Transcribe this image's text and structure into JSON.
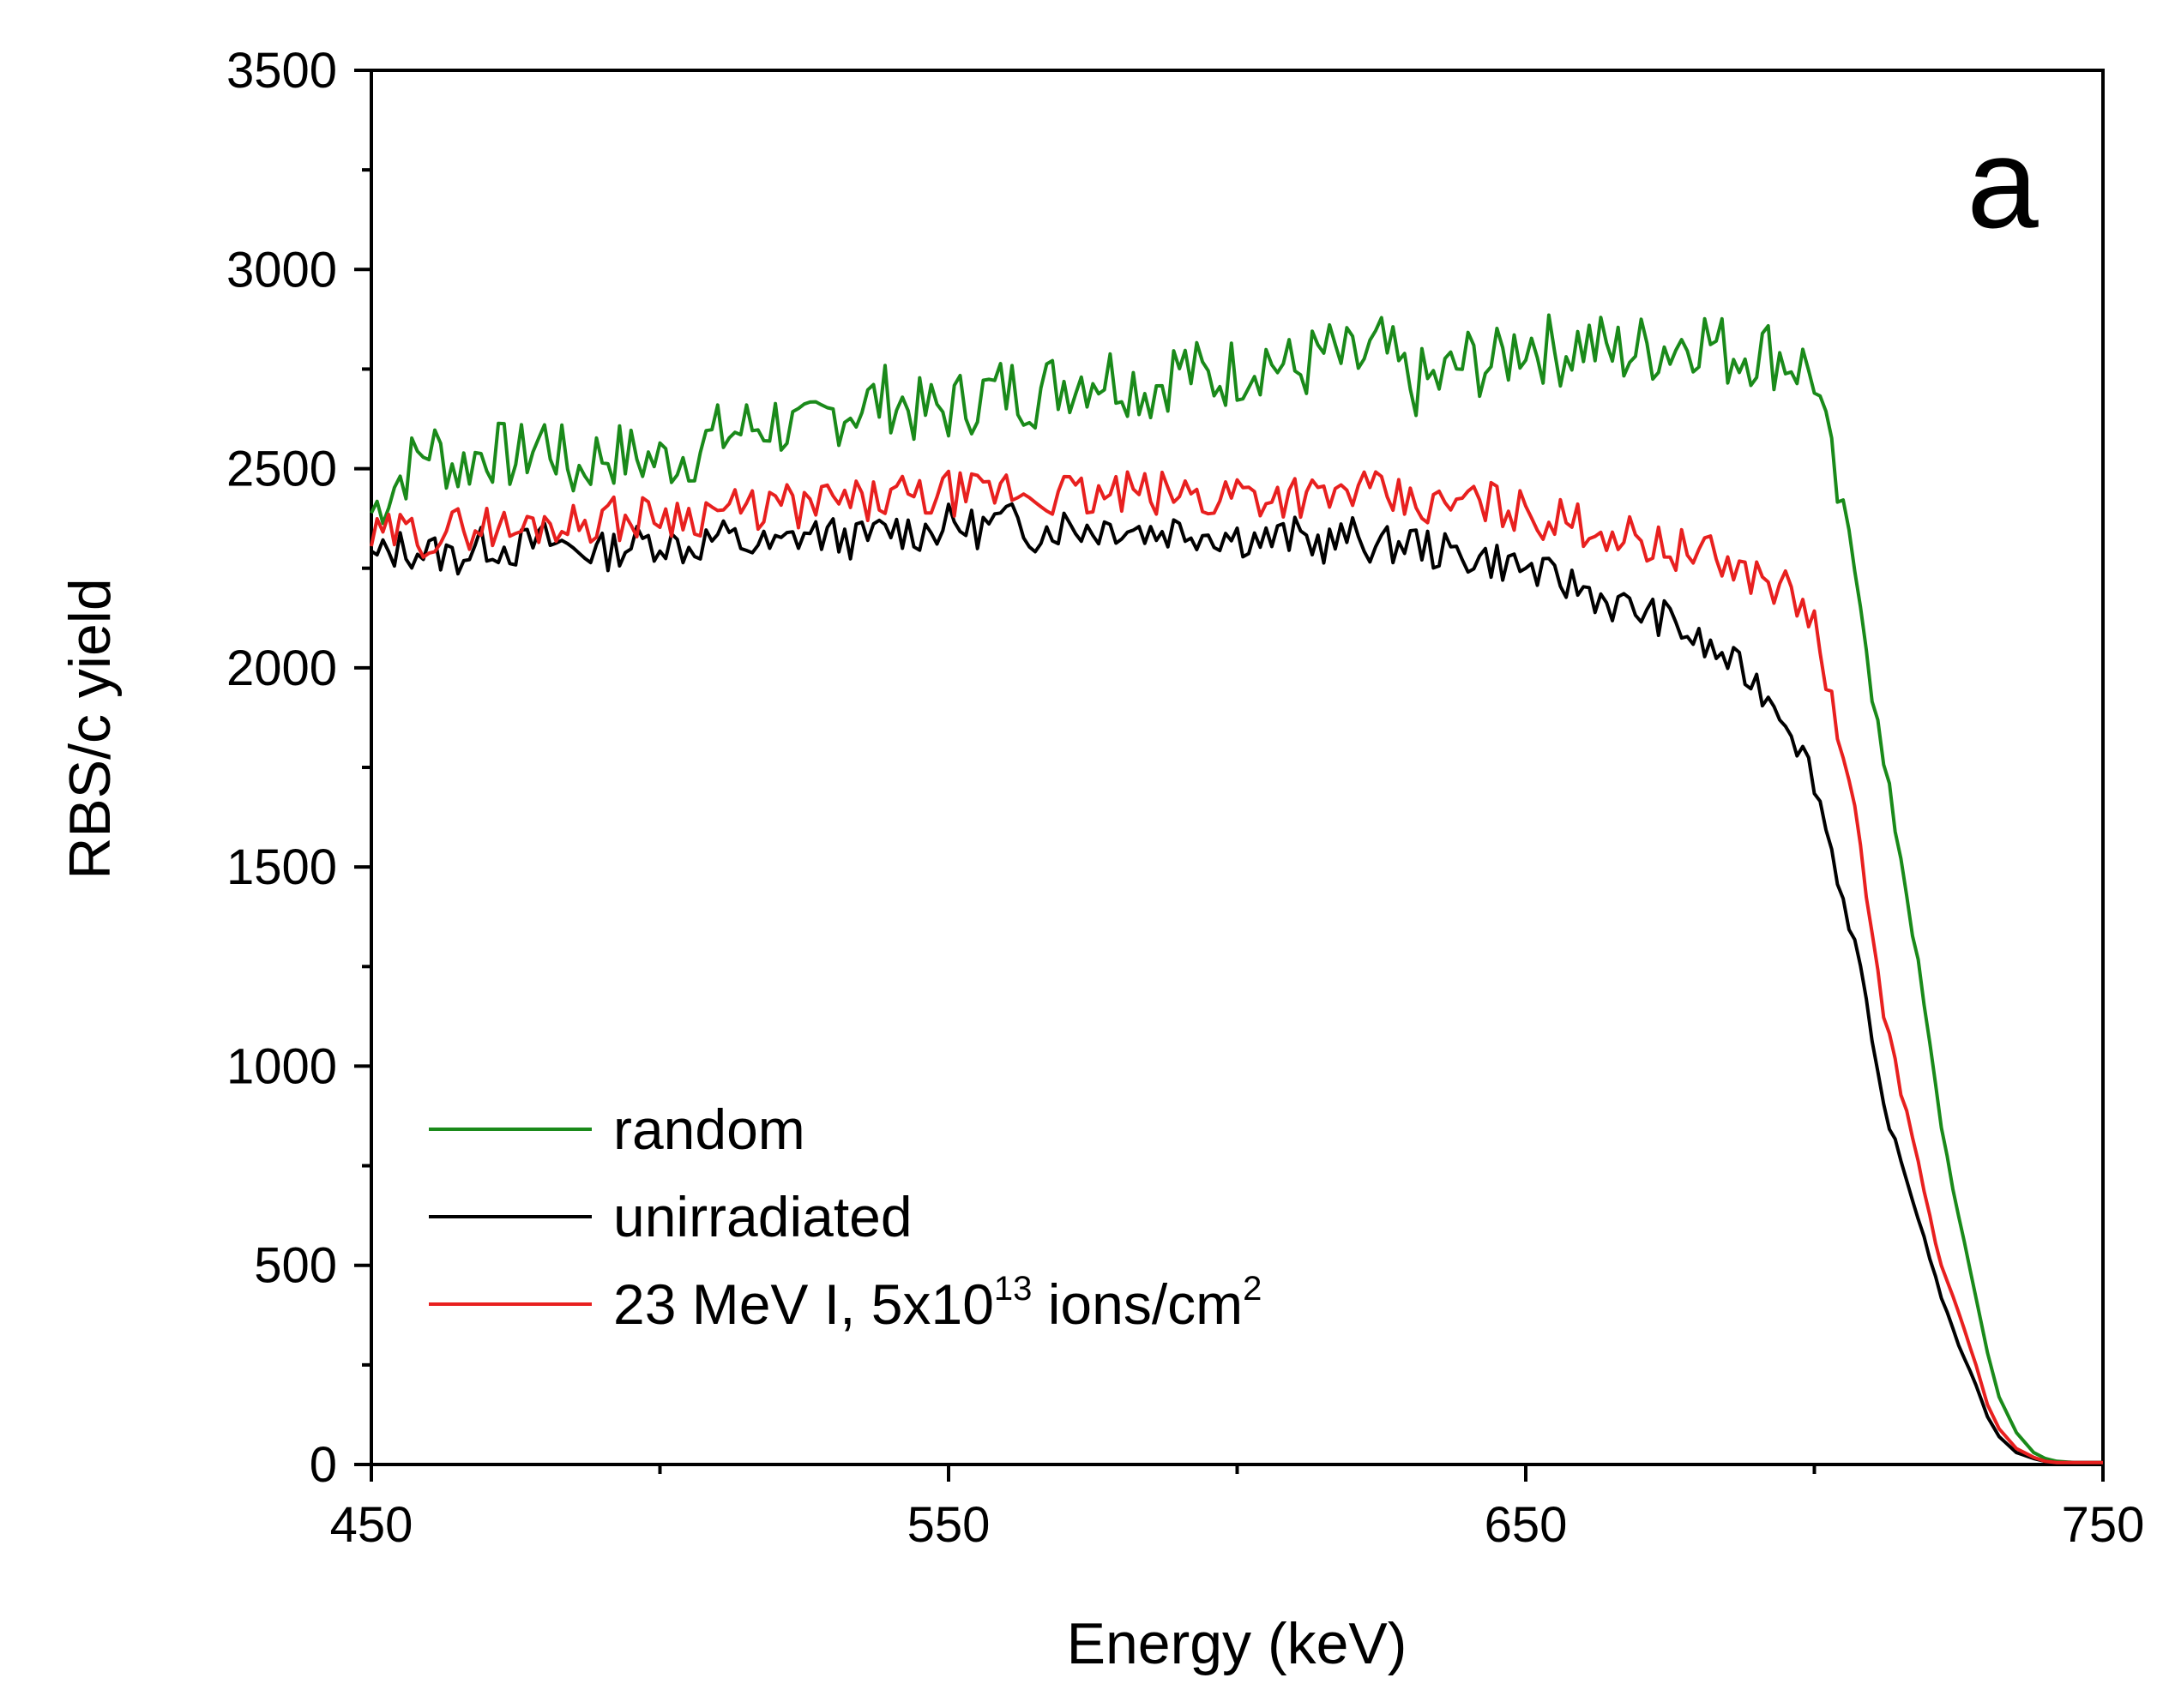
{
  "chart_data": {
    "type": "line",
    "title": "",
    "panel_label": "a",
    "xlabel": "Energy (keV)",
    "ylabel": "RBS/c yield",
    "xlim": [
      450,
      750
    ],
    "ylim": [
      0,
      3500
    ],
    "x_ticks": [
      450,
      550,
      650,
      750
    ],
    "x_tick_labels": [
      "450",
      "550",
      "650",
      "750"
    ],
    "y_ticks": [
      0,
      500,
      1000,
      1500,
      2000,
      2500,
      3000,
      3500
    ],
    "y_tick_labels": [
      "0",
      "500",
      "1000",
      "1500",
      "2000",
      "2500",
      "3000",
      "3500"
    ],
    "x_minor_step": 50,
    "y_minor_step": 250,
    "grid": false,
    "legend_position": "bottom-left",
    "series": [
      {
        "name": "random",
        "color": "#1a8a1a",
        "x": [
          450,
          455,
          460,
          465,
          470,
          475,
          480,
          485,
          490,
          495,
          500,
          505,
          510,
          515,
          520,
          525,
          530,
          535,
          540,
          545,
          550,
          555,
          560,
          565,
          570,
          575,
          580,
          585,
          590,
          595,
          600,
          605,
          610,
          615,
          620,
          625,
          630,
          635,
          640,
          645,
          650,
          655,
          660,
          665,
          670,
          675,
          680,
          685,
          690,
          695,
          700,
          702,
          705,
          708,
          710,
          712,
          715,
          718,
          720,
          722,
          725,
          728,
          730,
          732,
          735,
          738,
          740,
          742,
          745,
          750
        ],
        "y": [
          2390,
          2480,
          2560,
          2500,
          2550,
          2520,
          2580,
          2490,
          2540,
          2530,
          2520,
          2540,
          2580,
          2600,
          2620,
          2580,
          2640,
          2660,
          2680,
          2640,
          2650,
          2680,
          2700,
          2690,
          2720,
          2740,
          2730,
          2700,
          2760,
          2720,
          2750,
          2780,
          2740,
          2790,
          2760,
          2800,
          2710,
          2720,
          2770,
          2760,
          2830,
          2790,
          2820,
          2790,
          2800,
          2810,
          2840,
          2790,
          2800,
          2780,
          2740,
          2580,
          2360,
          2200,
          1950,
          1750,
          1530,
          1250,
          1050,
          850,
          620,
          420,
          280,
          170,
          80,
          30,
          15,
          8,
          5,
          5
        ]
      },
      {
        "name": "unirradiated",
        "color": "#000000",
        "x": [
          450,
          455,
          460,
          465,
          470,
          475,
          480,
          485,
          490,
          495,
          500,
          505,
          510,
          515,
          520,
          525,
          530,
          535,
          540,
          545,
          550,
          555,
          560,
          565,
          570,
          575,
          580,
          585,
          590,
          595,
          600,
          605,
          610,
          615,
          620,
          625,
          630,
          635,
          640,
          645,
          650,
          655,
          660,
          665,
          670,
          675,
          680,
          685,
          690,
          695,
          700,
          702,
          705,
          708,
          710,
          712,
          715,
          718,
          720,
          722,
          725,
          728,
          730,
          732,
          735,
          738,
          740,
          742,
          745,
          750
        ],
        "y": [
          2270,
          2300,
          2290,
          2280,
          2310,
          2300,
          2320,
          2300,
          2290,
          2310,
          2320,
          2300,
          2330,
          2310,
          2300,
          2340,
          2330,
          2320,
          2350,
          2340,
          2360,
          2350,
          2370,
          2340,
          2360,
          2350,
          2360,
          2340,
          2350,
          2340,
          2330,
          2320,
          2330,
          2310,
          2330,
          2300,
          2320,
          2290,
          2280,
          2270,
          2250,
          2220,
          2200,
          2160,
          2140,
          2120,
          2060,
          2020,
          1960,
          1880,
          1720,
          1600,
          1420,
          1250,
          1050,
          900,
          760,
          620,
          520,
          420,
          300,
          200,
          120,
          70,
          30,
          15,
          8,
          5,
          5,
          5
        ]
      },
      {
        "name": "23 MeV I, 5x10¹³ ions/cm²",
        "color": "#e8201f",
        "x": [
          450,
          455,
          460,
          465,
          470,
          475,
          480,
          485,
          490,
          495,
          500,
          505,
          510,
          515,
          520,
          525,
          530,
          535,
          540,
          545,
          550,
          555,
          560,
          565,
          570,
          575,
          580,
          585,
          590,
          595,
          600,
          605,
          610,
          615,
          620,
          625,
          630,
          635,
          640,
          645,
          650,
          655,
          660,
          665,
          670,
          675,
          680,
          685,
          690,
          695,
          700,
          702,
          705,
          708,
          710,
          712,
          715,
          718,
          720,
          722,
          725,
          728,
          730,
          732,
          735,
          738,
          740,
          742,
          745,
          750
        ],
        "y": [
          2320,
          2340,
          2330,
          2350,
          2360,
          2340,
          2370,
          2360,
          2380,
          2370,
          2390,
          2380,
          2400,
          2390,
          2410,
          2400,
          2420,
          2410,
          2430,
          2420,
          2440,
          2430,
          2450,
          2430,
          2440,
          2420,
          2440,
          2430,
          2440,
          2420,
          2450,
          2430,
          2440,
          2420,
          2450,
          2430,
          2410,
          2400,
          2420,
          2410,
          2390,
          2370,
          2360,
          2340,
          2320,
          2300,
          2290,
          2260,
          2230,
          2200,
          2110,
          1980,
          1760,
          1560,
          1330,
          1140,
          940,
          760,
          620,
          500,
          380,
          250,
          150,
          90,
          40,
          18,
          8,
          5,
          5,
          5
        ]
      }
    ],
    "legend": {
      "entries": [
        {
          "label": "random"
        },
        {
          "label": "unirradiated"
        },
        {
          "label_main": "23 MeV I, 5x10",
          "sup1": "13",
          "label_mid": " ions/cm",
          "sup2": "2"
        }
      ]
    }
  }
}
